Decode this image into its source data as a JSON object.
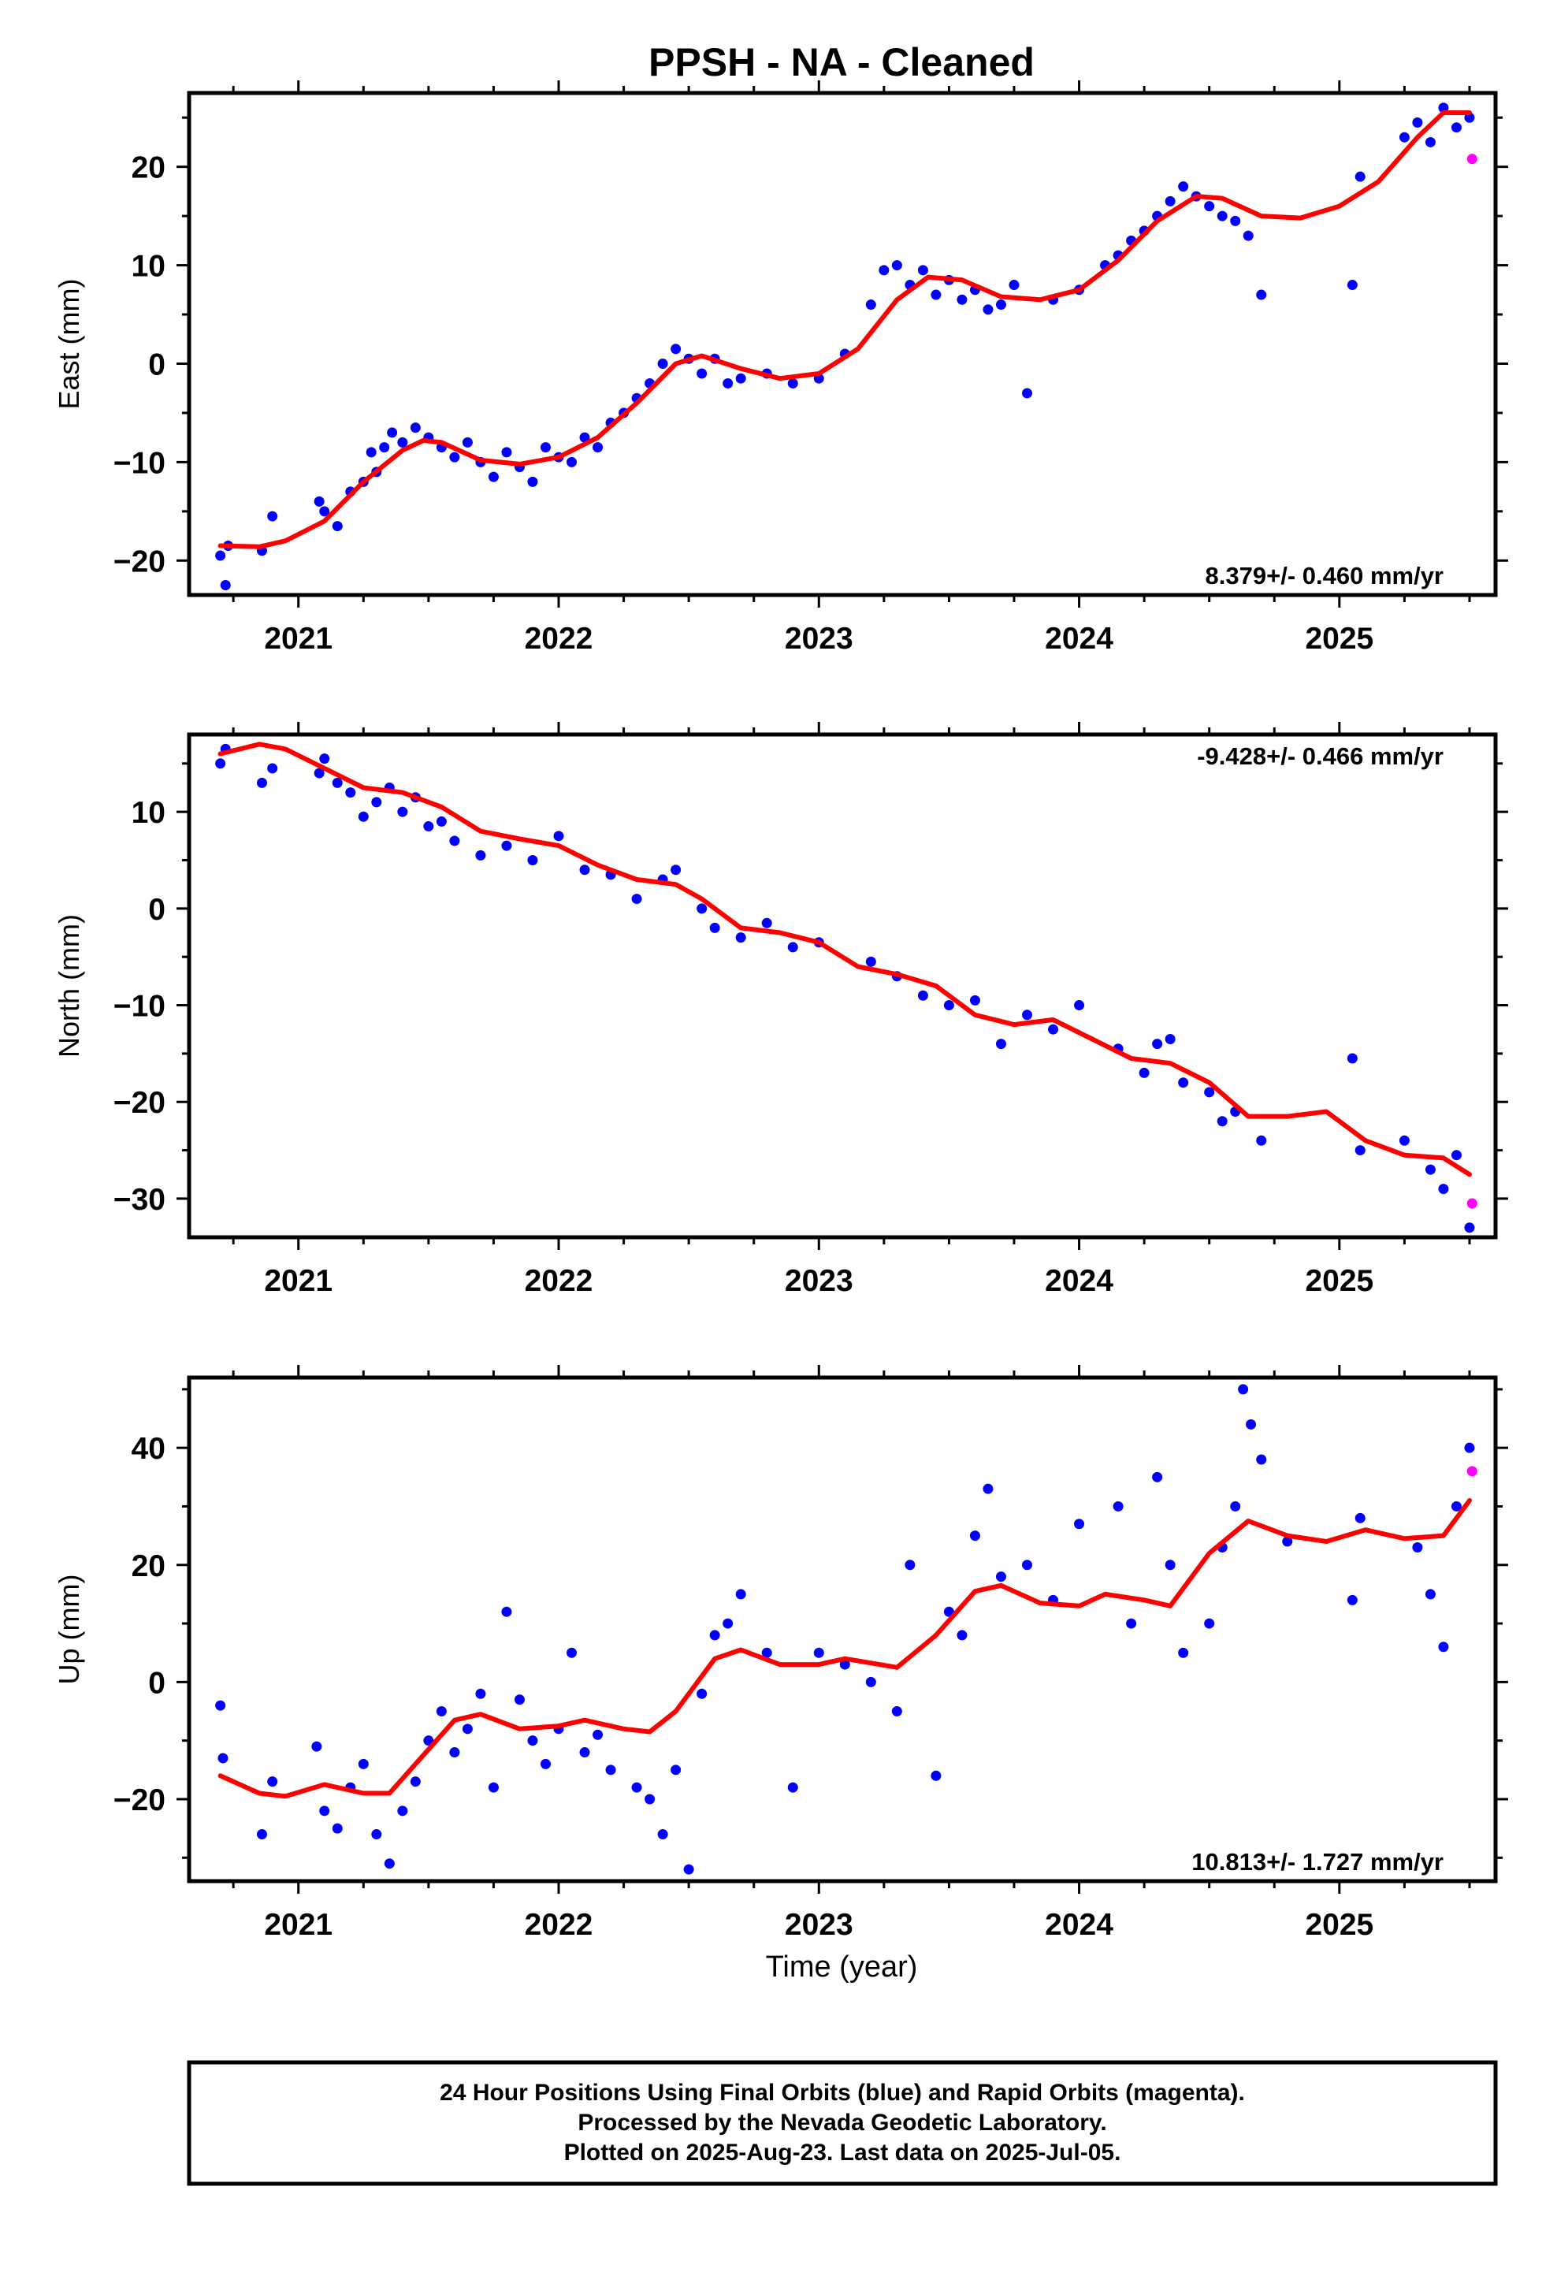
{
  "chart_data": {
    "title": "PPSH  - NA - Cleaned",
    "type": "scatter",
    "xlabel": "Time (year)",
    "x_ticks": [
      "2021",
      "2022",
      "2023",
      "2024",
      "2025"
    ],
    "xlim": [
      2020.58,
      2025.6
    ],
    "colors": {
      "final": "#0000ff",
      "rapid": "#ff00ff",
      "model": "#ff0000"
    },
    "legend_note": [
      "24 Hour Positions Using Final Orbits (blue) and Rapid Orbits (magenta).",
      "Processed by the Nevada Geodetic Laboratory.",
      "Plotted on 2025-Aug-23. Last data on 2025-Jul-05."
    ],
    "panels": [
      {
        "ylabel": "East (mm)",
        "ylim": [
          -23.5,
          27.5
        ],
        "y_ticks": [
          20,
          10,
          0,
          -10,
          -20
        ],
        "rate": "8.379+/- 0.460 mm/yr",
        "rate_position": "bottom-right",
        "model_curve": [
          [
            2020.7,
            -18.5
          ],
          [
            2020.85,
            -18.6
          ],
          [
            2020.95,
            -18.0
          ],
          [
            2021.1,
            -16.0
          ],
          [
            2021.25,
            -12.0
          ],
          [
            2021.4,
            -8.8
          ],
          [
            2021.48,
            -7.8
          ],
          [
            2021.55,
            -8.0
          ],
          [
            2021.7,
            -9.8
          ],
          [
            2021.85,
            -10.2
          ],
          [
            2022.0,
            -9.5
          ],
          [
            2022.15,
            -7.5
          ],
          [
            2022.3,
            -4.0
          ],
          [
            2022.45,
            0.0
          ],
          [
            2022.55,
            0.8
          ],
          [
            2022.7,
            -0.5
          ],
          [
            2022.85,
            -1.5
          ],
          [
            2023.0,
            -1.0
          ],
          [
            2023.15,
            1.5
          ],
          [
            2023.3,
            6.5
          ],
          [
            2023.42,
            8.8
          ],
          [
            2023.55,
            8.5
          ],
          [
            2023.7,
            6.8
          ],
          [
            2023.85,
            6.5
          ],
          [
            2024.0,
            7.5
          ],
          [
            2024.15,
            10.5
          ],
          [
            2024.3,
            14.5
          ],
          [
            2024.45,
            17.0
          ],
          [
            2024.55,
            16.8
          ],
          [
            2024.7,
            15.0
          ],
          [
            2024.85,
            14.8
          ],
          [
            2025.0,
            16.0
          ],
          [
            2025.15,
            18.5
          ],
          [
            2025.3,
            23.0
          ],
          [
            2025.4,
            25.5
          ],
          [
            2025.5,
            25.5
          ]
        ],
        "final_points": {
          "x": [
            2020.7,
            2020.72,
            2020.73,
            2020.86,
            2020.9,
            2021.08,
            2021.1,
            2021.15,
            2021.2,
            2021.25,
            2021.28,
            2021.3,
            2021.33,
            2021.36,
            2021.4,
            2021.45,
            2021.5,
            2021.55,
            2021.6,
            2021.65,
            2021.7,
            2021.75,
            2021.8,
            2021.85,
            2021.9,
            2021.95,
            2022.0,
            2022.05,
            2022.1,
            2022.15,
            2022.2,
            2022.25,
            2022.3,
            2022.35,
            2022.4,
            2022.45,
            2022.5,
            2022.55,
            2022.6,
            2022.65,
            2022.7,
            2022.8,
            2022.9,
            2023.0,
            2023.1,
            2023.2,
            2023.25,
            2023.3,
            2023.35,
            2023.4,
            2023.45,
            2023.5,
            2023.55,
            2023.6,
            2023.65,
            2023.7,
            2023.75,
            2023.8,
            2023.9,
            2024.0,
            2024.1,
            2024.15,
            2024.2,
            2024.25,
            2024.3,
            2024.35,
            2024.4,
            2024.45,
            2024.5,
            2024.55,
            2024.6,
            2024.65,
            2024.7,
            2025.05,
            2025.08,
            2025.25,
            2025.3,
            2025.35,
            2025.4,
            2025.45,
            2025.5
          ],
          "y": [
            -19.5,
            -22.5,
            -18.5,
            -19.0,
            -15.5,
            -14.0,
            -15.0,
            -16.5,
            -13.0,
            -12.0,
            -9.0,
            -11.0,
            -8.5,
            -7.0,
            -8.0,
            -6.5,
            -7.5,
            -8.5,
            -9.5,
            -8.0,
            -10.0,
            -11.5,
            -9.0,
            -10.5,
            -12.0,
            -8.5,
            -9.5,
            -10.0,
            -7.5,
            -8.5,
            -6.0,
            -5.0,
            -3.5,
            -2.0,
            0.0,
            1.5,
            0.5,
            -1.0,
            0.5,
            -2.0,
            -1.5,
            -1.0,
            -2.0,
            -1.5,
            1.0,
            6.0,
            9.5,
            10.0,
            8.0,
            9.5,
            7.0,
            8.5,
            6.5,
            7.5,
            5.5,
            6.0,
            8.0,
            -3.0,
            6.5,
            7.5,
            10.0,
            11.0,
            12.5,
            13.5,
            15.0,
            16.5,
            18.0,
            17.0,
            16.0,
            15.0,
            14.5,
            13.0,
            7.0,
            8.0,
            19.0,
            23.0,
            24.5,
            22.5,
            26.0,
            24.0,
            25.0
          ]
        },
        "rapid_points": {
          "x": [
            2025.51
          ],
          "y": [
            20.8
          ]
        }
      },
      {
        "ylabel": "North (mm)",
        "ylim": [
          -34,
          18
        ],
        "y_ticks": [
          10,
          0,
          -10,
          -20,
          -30
        ],
        "rate": "-9.428+/- 0.466 mm/yr",
        "rate_position": "top-right",
        "model_curve": [
          [
            2020.7,
            16.0
          ],
          [
            2020.85,
            17.0
          ],
          [
            2020.95,
            16.5
          ],
          [
            2021.1,
            14.5
          ],
          [
            2021.25,
            12.5
          ],
          [
            2021.4,
            12.0
          ],
          [
            2021.55,
            10.5
          ],
          [
            2021.7,
            8.0
          ],
          [
            2021.85,
            7.2
          ],
          [
            2022.0,
            6.5
          ],
          [
            2022.15,
            4.5
          ],
          [
            2022.3,
            3.0
          ],
          [
            2022.45,
            2.5
          ],
          [
            2022.55,
            1.0
          ],
          [
            2022.7,
            -2.0
          ],
          [
            2022.85,
            -2.5
          ],
          [
            2023.0,
            -3.5
          ],
          [
            2023.15,
            -6.0
          ],
          [
            2023.3,
            -6.8
          ],
          [
            2023.45,
            -8.0
          ],
          [
            2023.6,
            -11.0
          ],
          [
            2023.75,
            -12.0
          ],
          [
            2023.9,
            -11.5
          ],
          [
            2024.05,
            -13.5
          ],
          [
            2024.2,
            -15.5
          ],
          [
            2024.35,
            -16.0
          ],
          [
            2024.5,
            -18.0
          ],
          [
            2024.65,
            -21.5
          ],
          [
            2024.8,
            -21.5
          ],
          [
            2024.95,
            -21.0
          ],
          [
            2025.1,
            -24.0
          ],
          [
            2025.25,
            -25.5
          ],
          [
            2025.4,
            -25.8
          ],
          [
            2025.5,
            -27.5
          ]
        ],
        "final_points": {
          "x": [
            2020.7,
            2020.72,
            2020.86,
            2020.9,
            2021.08,
            2021.1,
            2021.15,
            2021.2,
            2021.25,
            2021.3,
            2021.35,
            2021.4,
            2021.45,
            2021.5,
            2021.55,
            2021.6,
            2021.7,
            2021.8,
            2021.9,
            2022.0,
            2022.1,
            2022.2,
            2022.3,
            2022.4,
            2022.45,
            2022.55,
            2022.6,
            2022.7,
            2022.8,
            2022.9,
            2023.0,
            2023.2,
            2023.3,
            2023.4,
            2023.5,
            2023.6,
            2023.7,
            2023.8,
            2023.9,
            2024.0,
            2024.15,
            2024.25,
            2024.3,
            2024.35,
            2024.4,
            2024.5,
            2024.55,
            2024.6,
            2024.7,
            2025.05,
            2025.08,
            2025.25,
            2025.35,
            2025.4,
            2025.45,
            2025.5
          ],
          "y": [
            15.0,
            16.5,
            13.0,
            14.5,
            14.0,
            15.5,
            13.0,
            12.0,
            9.5,
            11.0,
            12.5,
            10.0,
            11.5,
            8.5,
            9.0,
            7.0,
            5.5,
            6.5,
            5.0,
            7.5,
            4.0,
            3.5,
            1.0,
            3.0,
            4.0,
            0.0,
            -2.0,
            -3.0,
            -1.5,
            -4.0,
            -3.5,
            -5.5,
            -7.0,
            -9.0,
            -10.0,
            -9.5,
            -14.0,
            -11.0,
            -12.5,
            -10.0,
            -14.5,
            -17.0,
            -14.0,
            -13.5,
            -18.0,
            -19.0,
            -22.0,
            -21.0,
            -24.0,
            -15.5,
            -25.0,
            -24.0,
            -27.0,
            -29.0,
            -25.5,
            -33.0
          ]
        },
        "rapid_points": {
          "x": [
            2025.51
          ],
          "y": [
            -30.5
          ]
        }
      },
      {
        "ylabel": "Up (mm)",
        "ylim": [
          -34,
          52
        ],
        "y_ticks": [
          40,
          20,
          0,
          -20
        ],
        "rate": "10.813+/- 1.727 mm/yr",
        "rate_position": "bottom-right",
        "model_curve": [
          [
            2020.7,
            -16.0
          ],
          [
            2020.85,
            -19.0
          ],
          [
            2020.95,
            -19.5
          ],
          [
            2021.1,
            -17.5
          ],
          [
            2021.25,
            -19.0
          ],
          [
            2021.35,
            -19.0
          ],
          [
            2021.45,
            -14.0
          ],
          [
            2021.6,
            -6.5
          ],
          [
            2021.7,
            -5.5
          ],
          [
            2021.85,
            -8.0
          ],
          [
            2022.0,
            -7.5
          ],
          [
            2022.1,
            -6.5
          ],
          [
            2022.25,
            -8.0
          ],
          [
            2022.35,
            -8.5
          ],
          [
            2022.45,
            -5.0
          ],
          [
            2022.6,
            4.0
          ],
          [
            2022.7,
            5.5
          ],
          [
            2022.85,
            3.0
          ],
          [
            2023.0,
            3.0
          ],
          [
            2023.1,
            4.0
          ],
          [
            2023.3,
            2.5
          ],
          [
            2023.45,
            8.0
          ],
          [
            2023.6,
            15.5
          ],
          [
            2023.7,
            16.5
          ],
          [
            2023.85,
            13.5
          ],
          [
            2024.0,
            13.0
          ],
          [
            2024.1,
            15.0
          ],
          [
            2024.25,
            14.0
          ],
          [
            2024.35,
            13.0
          ],
          [
            2024.5,
            22.0
          ],
          [
            2024.65,
            27.5
          ],
          [
            2024.8,
            25.0
          ],
          [
            2024.95,
            24.0
          ],
          [
            2025.1,
            26.0
          ],
          [
            2025.25,
            24.5
          ],
          [
            2025.4,
            25.0
          ],
          [
            2025.5,
            31.0
          ]
        ],
        "final_points": {
          "x": [
            2020.7,
            2020.71,
            2020.86,
            2020.9,
            2021.07,
            2021.1,
            2021.15,
            2021.2,
            2021.25,
            2021.3,
            2021.35,
            2021.4,
            2021.45,
            2021.5,
            2021.55,
            2021.6,
            2021.65,
            2021.7,
            2021.75,
            2021.8,
            2021.85,
            2021.9,
            2021.95,
            2022.0,
            2022.05,
            2022.1,
            2022.15,
            2022.2,
            2022.3,
            2022.35,
            2022.4,
            2022.45,
            2022.5,
            2022.55,
            2022.6,
            2022.65,
            2022.7,
            2022.8,
            2022.9,
            2023.0,
            2023.1,
            2023.2,
            2023.3,
            2023.35,
            2023.45,
            2023.5,
            2023.55,
            2023.6,
            2023.65,
            2023.7,
            2023.8,
            2023.9,
            2024.0,
            2024.15,
            2024.2,
            2024.3,
            2024.35,
            2024.4,
            2024.5,
            2024.55,
            2024.6,
            2024.63,
            2024.66,
            2024.7,
            2024.8,
            2025.05,
            2025.08,
            2025.3,
            2025.35,
            2025.4,
            2025.45,
            2025.5
          ],
          "y": [
            -4.0,
            -13.0,
            -26.0,
            -17.0,
            -11.0,
            -22.0,
            -25.0,
            -18.0,
            -14.0,
            -26.0,
            -31.0,
            -22.0,
            -17.0,
            -10.0,
            -5.0,
            -12.0,
            -8.0,
            -2.0,
            -18.0,
            12.0,
            -3.0,
            -10.0,
            -14.0,
            -8.0,
            5.0,
            -12.0,
            -9.0,
            -15.0,
            -18.0,
            -20.0,
            -26.0,
            -15.0,
            -32.0,
            -2.0,
            8.0,
            10.0,
            15.0,
            5.0,
            -18.0,
            5.0,
            3.0,
            0.0,
            -5.0,
            20.0,
            -16.0,
            12.0,
            8.0,
            25.0,
            33.0,
            18.0,
            20.0,
            14.0,
            27.0,
            30.0,
            10.0,
            35.0,
            20.0,
            5.0,
            10.0,
            23.0,
            30.0,
            50.0,
            44.0,
            38.0,
            24.0,
            14.0,
            28.0,
            23.0,
            15.0,
            6.0,
            30.0,
            40.0
          ]
        },
        "rapid_points": {
          "x": [
            2025.51
          ],
          "y": [
            36.0
          ]
        }
      }
    ]
  }
}
